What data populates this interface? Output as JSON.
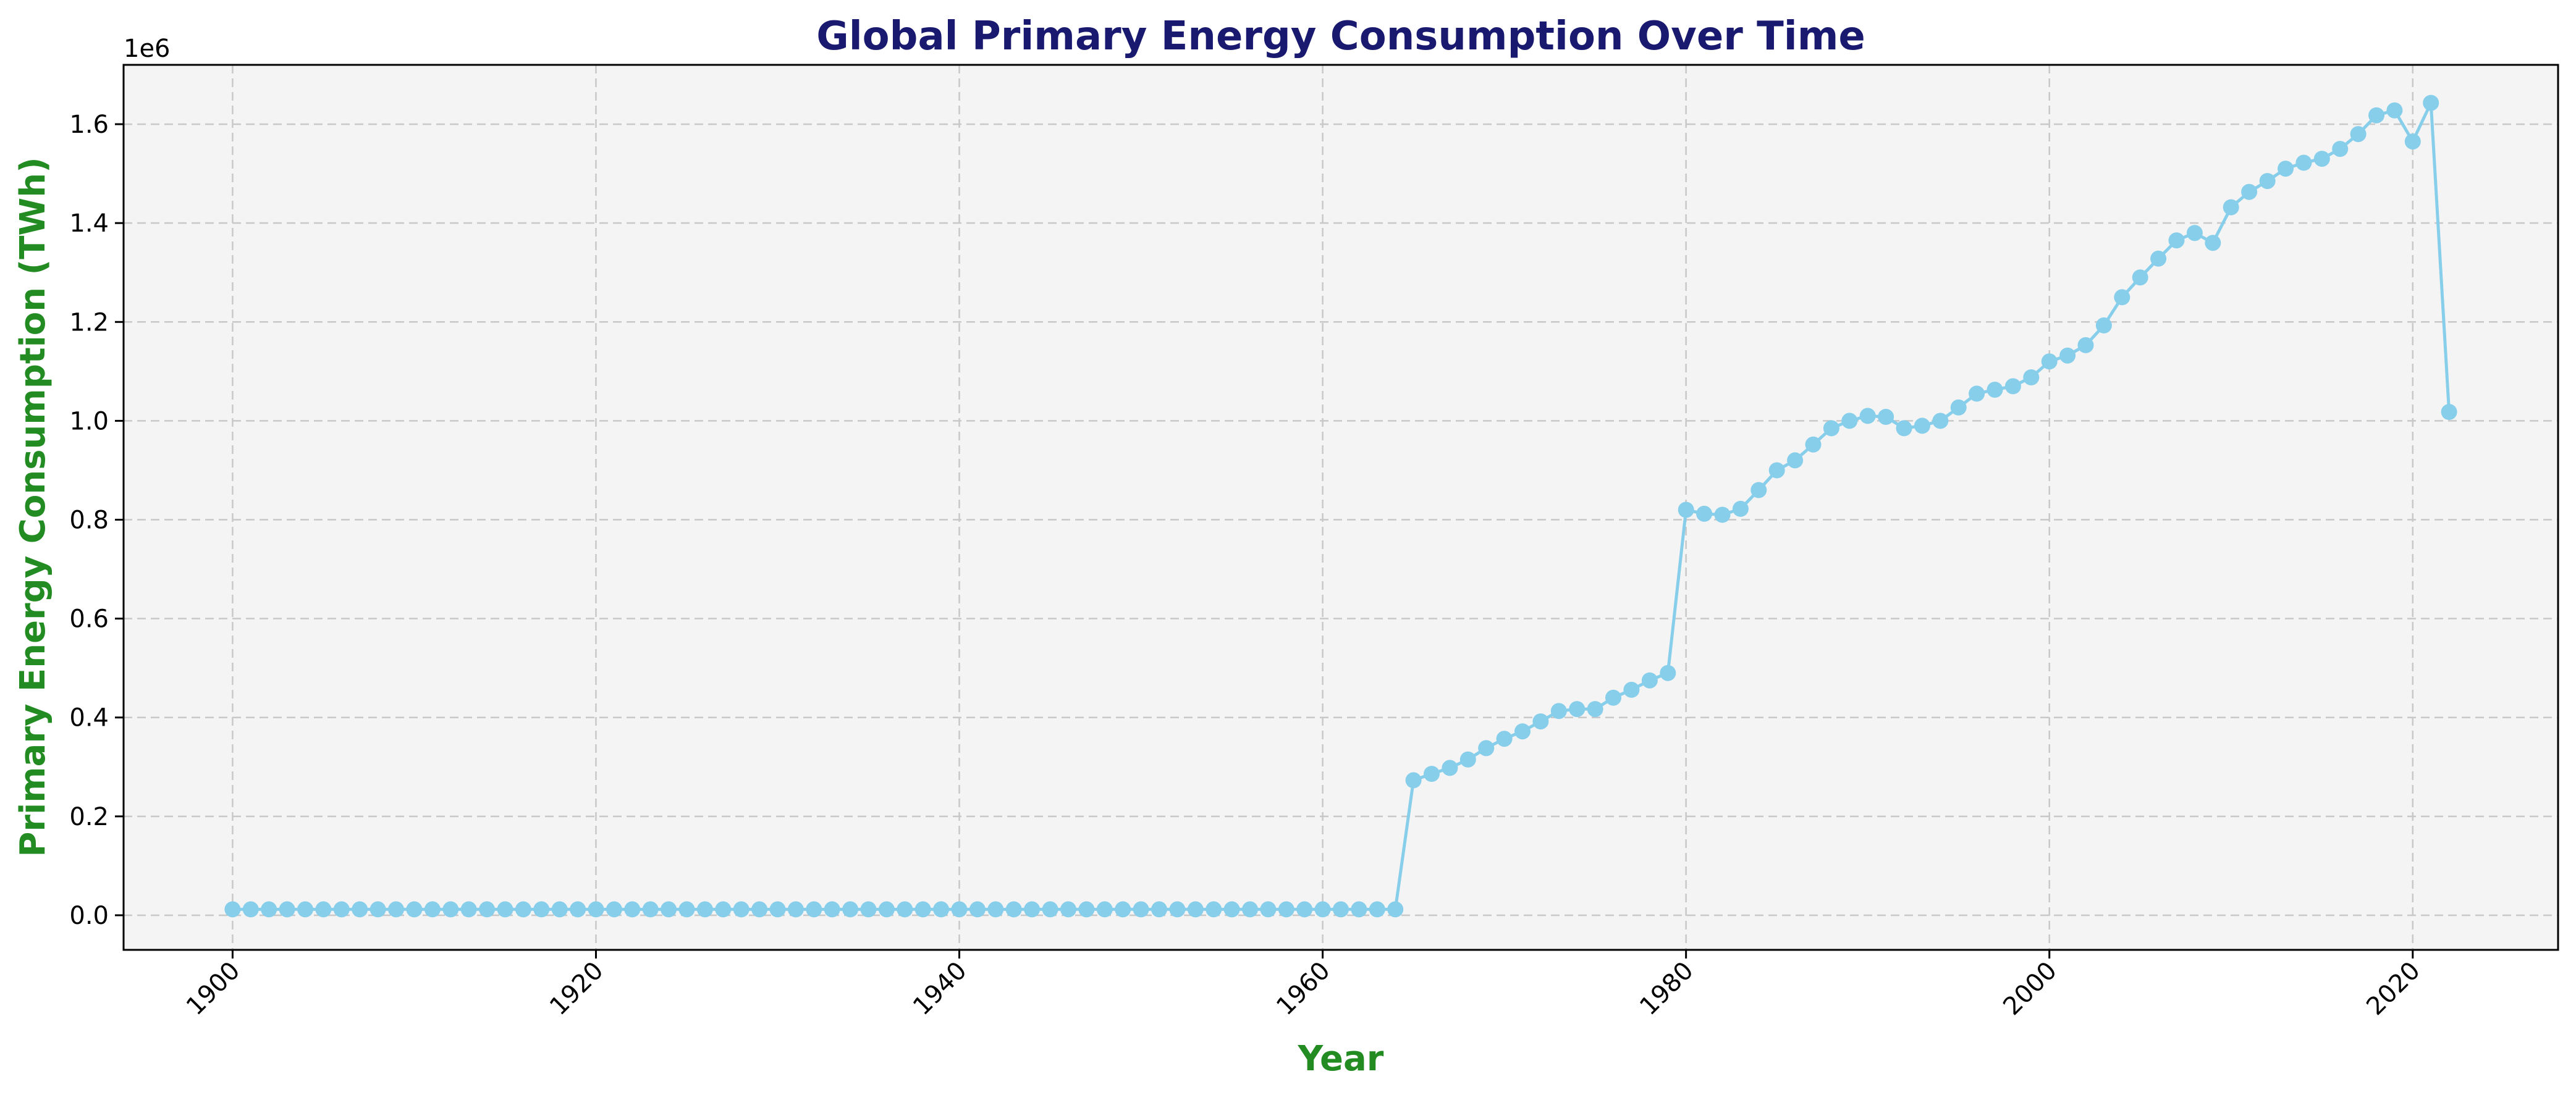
{
  "chart_data": {
    "type": "line",
    "title": "Global Primary Energy Consumption Over Time",
    "xlabel": "Year",
    "ylabel": "Primary Energy Consumption (TWh)",
    "y_offset_label": "1e6",
    "xlim": [
      1894,
      2028
    ],
    "ylim": [
      -70000,
      1720000
    ],
    "x_ticks": [
      1900,
      1920,
      1940,
      1960,
      1980,
      2000,
      2020
    ],
    "x_tick_labels": [
      "1900",
      "1920",
      "1940",
      "1960",
      "1980",
      "2000",
      "2020"
    ],
    "y_ticks": [
      0,
      200000,
      400000,
      600000,
      800000,
      1000000,
      1200000,
      1400000,
      1600000
    ],
    "y_tick_labels": [
      "0.0",
      "0.2",
      "0.4",
      "0.6",
      "0.8",
      "1.0",
      "1.2",
      "1.4",
      "1.6"
    ],
    "grid": true,
    "marker": "circle",
    "colors": {
      "series": "#87CEEB",
      "plot_background": "#f4f4f4",
      "title": "#191970",
      "axis_label": "#228B22"
    },
    "series": [
      {
        "x": [
          1900,
          1901,
          1902,
          1903,
          1904,
          1905,
          1906,
          1907,
          1908,
          1909,
          1910,
          1911,
          1912,
          1913,
          1914,
          1915,
          1916,
          1917,
          1918,
          1919,
          1920,
          1921,
          1922,
          1923,
          1924,
          1925,
          1926,
          1927,
          1928,
          1929,
          1930,
          1931,
          1932,
          1933,
          1934,
          1935,
          1936,
          1937,
          1938,
          1939,
          1940,
          1941,
          1942,
          1943,
          1944,
          1945,
          1946,
          1947,
          1948,
          1949,
          1950,
          1951,
          1952,
          1953,
          1954,
          1955,
          1956,
          1957,
          1958,
          1959,
          1960,
          1961,
          1962,
          1963,
          1964,
          1965,
          1966,
          1967,
          1968,
          1969,
          1970,
          1971,
          1972,
          1973,
          1974,
          1975,
          1976,
          1977,
          1978,
          1979,
          1980,
          1981,
          1982,
          1983,
          1984,
          1985,
          1986,
          1987,
          1988,
          1989,
          1990,
          1991,
          1992,
          1993,
          1994,
          1995,
          1996,
          1997,
          1998,
          1999,
          2000,
          2001,
          2002,
          2003,
          2004,
          2005,
          2006,
          2007,
          2008,
          2009,
          2010,
          2011,
          2012,
          2013,
          2014,
          2015,
          2016,
          2017,
          2018,
          2019,
          2020,
          2021,
          2022
        ],
        "values": [
          12000,
          12000,
          12000,
          12000,
          12000,
          12000,
          12000,
          12000,
          12000,
          12000,
          12000,
          12000,
          12000,
          12000,
          12000,
          12000,
          12000,
          12000,
          12000,
          12000,
          12000,
          12000,
          12000,
          12000,
          12000,
          12000,
          12000,
          12000,
          12000,
          12000,
          12000,
          12000,
          12000,
          12000,
          12000,
          12000,
          12000,
          12000,
          12000,
          12000,
          12000,
          12000,
          12000,
          12000,
          12000,
          12000,
          12000,
          12000,
          12000,
          12000,
          12000,
          12000,
          12000,
          12000,
          12000,
          12000,
          12000,
          12000,
          12000,
          12000,
          12000,
          12000,
          12000,
          12000,
          12000,
          273000,
          286000,
          298000,
          315000,
          338000,
          357000,
          372000,
          392000,
          413000,
          417000,
          417000,
          440000,
          456000,
          475000,
          490000,
          820000,
          812000,
          810000,
          822000,
          860000,
          900000,
          920000,
          952000,
          985000,
          1000000,
          1010000,
          1008000,
          985000,
          990000,
          1000000,
          1027000,
          1055000,
          1063000,
          1070000,
          1088000,
          1120000,
          1132000,
          1153000,
          1193000,
          1250000,
          1290000,
          1328000,
          1365000,
          1380000,
          1360000,
          1432000,
          1463000,
          1485000,
          1510000,
          1522000,
          1530000,
          1550000,
          1580000,
          1618000,
          1628000,
          1565000,
          1643000,
          1018000
        ]
      }
    ]
  }
}
